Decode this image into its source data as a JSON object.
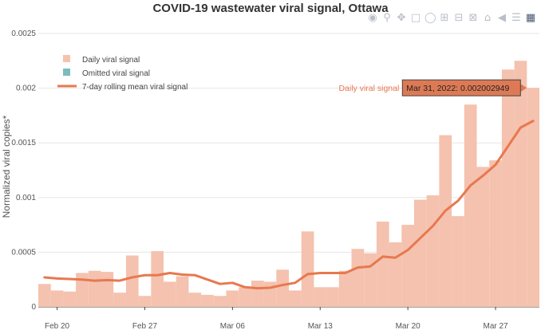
{
  "chart_data": {
    "type": "bar",
    "title": "COVID-19 wastewater viral signal, Ottawa",
    "xlabel": "",
    "ylabel": "Normalized viral copies*",
    "ylim": [
      0,
      0.0025
    ],
    "x_ticks": [
      "Feb 20",
      "Feb 27",
      "Mar 06",
      "Mar 13",
      "Mar 20",
      "Mar 27"
    ],
    "y_ticks": [
      "0",
      "0.0005",
      "0.001",
      "0.0015",
      "0.002",
      "0.0025"
    ],
    "grid": true,
    "legend_placement": "top-left",
    "legend": [
      "Daily viral signal",
      "Omitted viral signal",
      "7-day rolling mean viral signal"
    ],
    "start_date": "Feb 19",
    "series": [
      {
        "name": "Daily viral signal",
        "kind": "bar",
        "color": "#f4c2ae",
        "values": [
          0.00021,
          0.00015,
          0.00014,
          0.00031,
          0.00033,
          0.00032,
          0.00013,
          0.00047,
          0.0001,
          0.00051,
          0.00023,
          0.00028,
          0.00013,
          0.00011,
          0.0001,
          0.00015,
          0.00018,
          0.00024,
          0.00023,
          0.00034,
          0.00015,
          0.00069,
          0.00018,
          0.00018,
          0.00033,
          0.00053,
          0.00049,
          0.00078,
          0.00059,
          0.00075,
          0.00098,
          0.00102,
          0.00157,
          0.00083,
          0.00185,
          0.00128,
          0.00134,
          0.00217,
          0.00225,
          0.002002949
        ]
      },
      {
        "name": "Omitted viral signal",
        "kind": "bar",
        "color": "#7bbcbc",
        "values": []
      },
      {
        "name": "7-day rolling mean viral signal",
        "kind": "line",
        "color": "#e8784f",
        "values": [
          0.00027,
          0.00026,
          0.000255,
          0.00025,
          0.00024,
          0.000245,
          0.00024,
          0.00027,
          0.00029,
          0.00029,
          0.00031,
          0.000295,
          0.00029,
          0.00025,
          0.00021,
          0.00022,
          0.00018,
          0.00017,
          0.000175,
          0.0002,
          0.00022,
          0.0003,
          0.00031,
          0.00031,
          0.00031,
          0.00036,
          0.00037,
          0.00046,
          0.00045,
          0.00052,
          0.00063,
          0.00074,
          0.00088,
          0.00097,
          0.00111,
          0.0012,
          0.0013,
          0.00147,
          0.00164,
          0.0017
        ]
      }
    ],
    "hover": {
      "series_label": "Daily viral signal",
      "text": "Mar 31, 2022: 0.002002949"
    }
  },
  "modebar": {
    "icons": [
      "camera-icon",
      "zoom-icon",
      "pan-icon",
      "box-select-icon",
      "lasso-icon",
      "zoom-in-icon",
      "zoom-out-icon",
      "autoscale-icon",
      "reset-axes-icon",
      "hover-closest-icon",
      "hover-compare-icon",
      "plotly-logo-icon"
    ]
  }
}
